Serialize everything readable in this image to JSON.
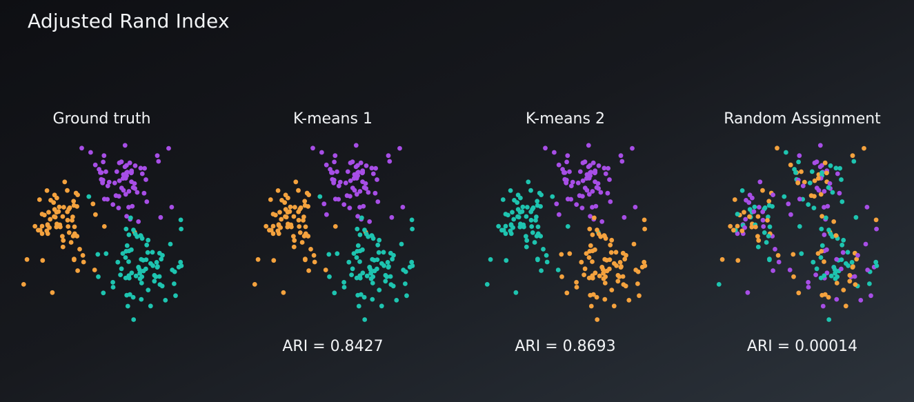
{
  "title": "Adjusted Rand Index",
  "colors": {
    "orange": "#f4a23e",
    "purple": "#a74ee6",
    "teal": "#1ec4b0"
  },
  "chart_data": [
    {
      "type": "scatter",
      "title": "Ground truth",
      "annotation": "",
      "scheme": "truth"
    },
    {
      "type": "scatter",
      "title": "K-means 1",
      "annotation": "ARI = 0.8427",
      "scheme": "km1"
    },
    {
      "type": "scatter",
      "title": "K-means 2",
      "annotation": "ARI = 0.8693",
      "scheme": "km2"
    },
    {
      "type": "scatter",
      "title": "Random Assignment",
      "annotation": "ARI = 0.00014",
      "scheme": "random"
    }
  ]
}
